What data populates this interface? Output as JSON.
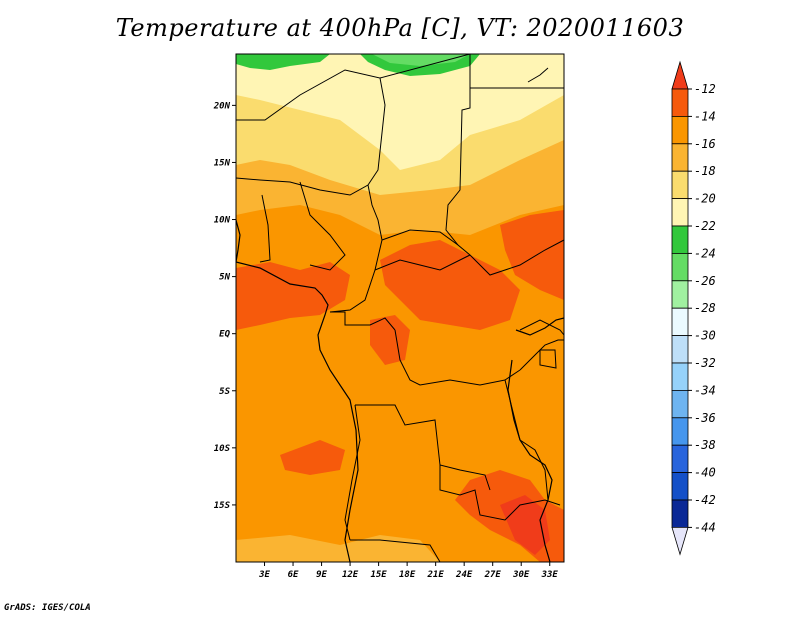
{
  "title": "Temperature at 400hPa [C], VT: 2020011603",
  "credit": "GrADS: IGES/COLA",
  "map": {
    "lat_ticks": [
      "20N",
      "15N",
      "10N",
      "5N",
      "EQ",
      "5S",
      "10S",
      "15S"
    ],
    "lon_ticks": [
      "3E",
      "6E",
      "9E",
      "12E",
      "15E",
      "18E",
      "21E",
      "24E",
      "27E",
      "30E",
      "33E"
    ],
    "lat_values": [
      20,
      15,
      10,
      5,
      0,
      -5,
      -10,
      -15
    ],
    "lon_values": [
      3,
      6,
      9,
      12,
      15,
      18,
      21,
      24,
      27,
      30,
      33
    ],
    "lat_range": [
      -20,
      24.5
    ],
    "lon_range": [
      0,
      34.5
    ]
  },
  "colorbar": {
    "labels": [
      "-12",
      "-14",
      "-16",
      "-18",
      "-20",
      "-22",
      "-24",
      "-26",
      "-28",
      "-30",
      "-32",
      "-34",
      "-36",
      "-38",
      "-40",
      "-42",
      "-44"
    ],
    "colors": [
      "#f03c1a",
      "#f65a0c",
      "#fa9600",
      "#fab432",
      "#fadc6e",
      "#fff5b4",
      "#32c83c",
      "#64dc64",
      "#a0f0a0",
      "#ebfaff",
      "#bedff8",
      "#96d2fa",
      "#6eb4f0",
      "#4696ed",
      "#2864dc",
      "#1450c8",
      "#0a2896",
      "#000a6e",
      "#e6e6fa"
    ]
  }
}
